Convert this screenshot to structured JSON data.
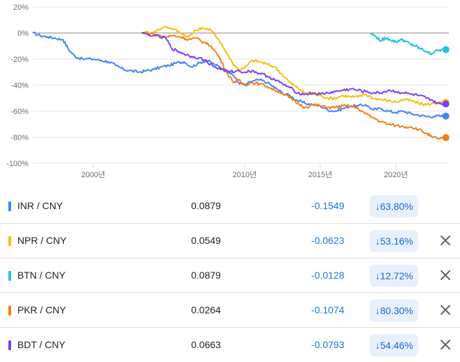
{
  "chart_data": {
    "type": "line",
    "x_ticks": [
      "2000년",
      "2010년",
      "2015년",
      "2020년"
    ],
    "y_ticks": [
      "20%",
      "0%",
      "-20%",
      "-40%",
      "-60%",
      "-80%",
      "-100%"
    ],
    "ylim": [
      -100,
      20
    ],
    "xlim": [
      1996,
      2023.5
    ],
    "baseline": 0,
    "grid": "horizontal",
    "series": [
      {
        "name": "INR / CNY",
        "color": "#4285f4",
        "points": [
          [
            1996,
            0
          ],
          [
            1996.5,
            -2
          ],
          [
            1997,
            -3
          ],
          [
            1997.5,
            -4
          ],
          [
            1998,
            -5
          ],
          [
            1998.4,
            -13
          ],
          [
            1998.8,
            -18
          ],
          [
            1999.3,
            -20
          ],
          [
            2000,
            -20
          ],
          [
            2000.5,
            -21
          ],
          [
            2001,
            -22
          ],
          [
            2001.5,
            -25
          ],
          [
            2002,
            -28
          ],
          [
            2002.5,
            -29
          ],
          [
            2003,
            -30
          ],
          [
            2003.5,
            -29
          ],
          [
            2004,
            -28
          ],
          [
            2004.5,
            -26
          ],
          [
            2005,
            -25
          ],
          [
            2005.5,
            -23
          ],
          [
            2006,
            -22
          ],
          [
            2006.5,
            -26
          ],
          [
            2007,
            -23
          ],
          [
            2007.5,
            -21
          ],
          [
            2008,
            -24
          ],
          [
            2008.5,
            -27
          ],
          [
            2009,
            -30
          ],
          [
            2009.3,
            -33
          ],
          [
            2009.6,
            -38
          ],
          [
            2010,
            -40
          ],
          [
            2010.5,
            -37
          ],
          [
            2011,
            -36
          ],
          [
            2011.5,
            -38
          ],
          [
            2012,
            -42
          ],
          [
            2012.5,
            -46
          ],
          [
            2013,
            -48
          ],
          [
            2013.5,
            -52
          ],
          [
            2014,
            -54
          ],
          [
            2014.5,
            -55
          ],
          [
            2015,
            -56
          ],
          [
            2015.5,
            -59
          ],
          [
            2016,
            -60
          ],
          [
            2016.5,
            -58
          ],
          [
            2017,
            -56
          ],
          [
            2017.5,
            -56
          ],
          [
            2018,
            -55
          ],
          [
            2018.5,
            -59
          ],
          [
            2019,
            -58
          ],
          [
            2019.5,
            -60
          ],
          [
            2020,
            -61
          ],
          [
            2020.5,
            -60
          ],
          [
            2021,
            -62
          ],
          [
            2021.5,
            -63
          ],
          [
            2022,
            -64
          ],
          [
            2022.5,
            -64
          ],
          [
            2023,
            -63.8
          ],
          [
            2023.3,
            -63.8
          ]
        ]
      },
      {
        "name": "NPR / CNY",
        "color": "#fbbc04",
        "points": [
          [
            2003.2,
            0
          ],
          [
            2004,
            1
          ],
          [
            2004.8,
            5
          ],
          [
            2005.3,
            3
          ],
          [
            2005.8,
            0
          ],
          [
            2006.3,
            -3
          ],
          [
            2006.8,
            2
          ],
          [
            2007.2,
            4
          ],
          [
            2007.8,
            2
          ],
          [
            2008.3,
            -5
          ],
          [
            2008.8,
            -15
          ],
          [
            2009.2,
            -23
          ],
          [
            2009.6,
            -28
          ],
          [
            2010,
            -27
          ],
          [
            2010.5,
            -21
          ],
          [
            2011,
            -22
          ],
          [
            2011.5,
            -24
          ],
          [
            2012,
            -26
          ],
          [
            2012.5,
            -32
          ],
          [
            2013,
            -38
          ],
          [
            2013.5,
            -42
          ],
          [
            2014,
            -46
          ],
          [
            2014.5,
            -47
          ],
          [
            2015,
            -48
          ],
          [
            2015.5,
            -50
          ],
          [
            2016,
            -50
          ],
          [
            2016.5,
            -48
          ],
          [
            2017,
            -49
          ],
          [
            2017.5,
            -49
          ],
          [
            2018,
            -47
          ],
          [
            2018.5,
            -50
          ],
          [
            2019,
            -51
          ],
          [
            2019.5,
            -52
          ],
          [
            2020,
            -53
          ],
          [
            2020.5,
            -51
          ],
          [
            2021,
            -52
          ],
          [
            2021.5,
            -54
          ],
          [
            2022,
            -55
          ],
          [
            2022.5,
            -54
          ],
          [
            2023,
            -53.2
          ],
          [
            2023.3,
            -53.16
          ]
        ]
      },
      {
        "name": "BTN / CNY",
        "color": "#24c1e0",
        "points": [
          [
            2018.3,
            0
          ],
          [
            2018.7,
            -3
          ],
          [
            2019,
            -6
          ],
          [
            2019.3,
            -4
          ],
          [
            2019.6,
            -5
          ],
          [
            2020,
            -7
          ],
          [
            2020.3,
            -5
          ],
          [
            2020.6,
            -6
          ],
          [
            2021,
            -9
          ],
          [
            2021.3,
            -10
          ],
          [
            2021.6,
            -12
          ],
          [
            2022,
            -14
          ],
          [
            2022.3,
            -16
          ],
          [
            2022.6,
            -14
          ],
          [
            2023,
            -13
          ],
          [
            2023.3,
            -12.7
          ]
        ]
      },
      {
        "name": "PKR / CNY",
        "color": "#fa7b17",
        "points": [
          [
            2003.2,
            0
          ],
          [
            2004,
            -1
          ],
          [
            2004.8,
            -3
          ],
          [
            2005.3,
            -2
          ],
          [
            2005.8,
            -3
          ],
          [
            2006.3,
            -5
          ],
          [
            2006.8,
            -4
          ],
          [
            2007.3,
            -7
          ],
          [
            2007.8,
            -10
          ],
          [
            2008.3,
            -18
          ],
          [
            2008.8,
            -30
          ],
          [
            2009.3,
            -38
          ],
          [
            2009.6,
            -36
          ],
          [
            2010,
            -40
          ],
          [
            2010.5,
            -38
          ],
          [
            2011,
            -39
          ],
          [
            2011.5,
            -41
          ],
          [
            2012,
            -44
          ],
          [
            2012.5,
            -46
          ],
          [
            2013,
            -50
          ],
          [
            2013.5,
            -54
          ],
          [
            2014,
            -57
          ],
          [
            2014.5,
            -55
          ],
          [
            2015,
            -56
          ],
          [
            2015.5,
            -57
          ],
          [
            2016,
            -57
          ],
          [
            2016.5,
            -56
          ],
          [
            2017,
            -56
          ],
          [
            2017.5,
            -58
          ],
          [
            2018,
            -62
          ],
          [
            2018.5,
            -65
          ],
          [
            2019,
            -68
          ],
          [
            2019.5,
            -70
          ],
          [
            2020,
            -71
          ],
          [
            2020.5,
            -72
          ],
          [
            2021,
            -72
          ],
          [
            2021.5,
            -74
          ],
          [
            2022,
            -77
          ],
          [
            2022.4,
            -80
          ],
          [
            2022.8,
            -81
          ],
          [
            2023.3,
            -80.3
          ]
        ]
      },
      {
        "name": "BDT / CNY",
        "color": "#7e3ff2",
        "points": [
          [
            2003.2,
            0
          ],
          [
            2004,
            -2
          ],
          [
            2004.8,
            -4
          ],
          [
            2005.2,
            -12
          ],
          [
            2005.6,
            -14
          ],
          [
            2006,
            -16
          ],
          [
            2006.5,
            -18
          ],
          [
            2007,
            -19
          ],
          [
            2007.5,
            -22
          ],
          [
            2008,
            -26
          ],
          [
            2008.5,
            -28
          ],
          [
            2009,
            -30
          ],
          [
            2009.5,
            -29
          ],
          [
            2010,
            -30
          ],
          [
            2010.5,
            -29
          ],
          [
            2011,
            -31
          ],
          [
            2011.5,
            -33
          ],
          [
            2012,
            -36
          ],
          [
            2012.5,
            -39
          ],
          [
            2013,
            -42
          ],
          [
            2013.5,
            -46
          ],
          [
            2014,
            -47
          ],
          [
            2014.5,
            -46
          ],
          [
            2015,
            -47
          ],
          [
            2015.5,
            -46
          ],
          [
            2016,
            -45
          ],
          [
            2016.5,
            -44
          ],
          [
            2017,
            -43
          ],
          [
            2017.5,
            -44
          ],
          [
            2018,
            -45
          ],
          [
            2018.5,
            -46
          ],
          [
            2019,
            -46
          ],
          [
            2019.5,
            -44
          ],
          [
            2020,
            -45
          ],
          [
            2020.5,
            -46
          ],
          [
            2021,
            -47
          ],
          [
            2021.5,
            -48
          ],
          [
            2022,
            -50
          ],
          [
            2022.5,
            -53
          ],
          [
            2023,
            -54
          ],
          [
            2023.3,
            -54.46
          ]
        ]
      }
    ]
  },
  "rows": [
    {
      "pair": "INR / CNY",
      "rate": "0.0879",
      "change": "-0.1549",
      "percent": "↓63.80%",
      "color": "#4285f4",
      "removable": false
    },
    {
      "pair": "NPR / CNY",
      "rate": "0.0549",
      "change": "-0.0623",
      "percent": "↓53.16%",
      "color": "#fbbc04",
      "removable": true
    },
    {
      "pair": "BTN / CNY",
      "rate": "0.0879",
      "change": "-0.0128",
      "percent": "↓12.72%",
      "color": "#24c1e0",
      "removable": true
    },
    {
      "pair": "PKR / CNY",
      "rate": "0.0264",
      "change": "-0.1074",
      "percent": "↓80.30%",
      "color": "#fa7b17",
      "removable": true
    },
    {
      "pair": "BDT / CNY",
      "rate": "0.0663",
      "change": "-0.0793",
      "percent": "↓54.46%",
      "color": "#7e3ff2",
      "removable": true
    }
  ],
  "icons": {
    "remove": "close-icon",
    "legend": "series-color-swatch"
  }
}
